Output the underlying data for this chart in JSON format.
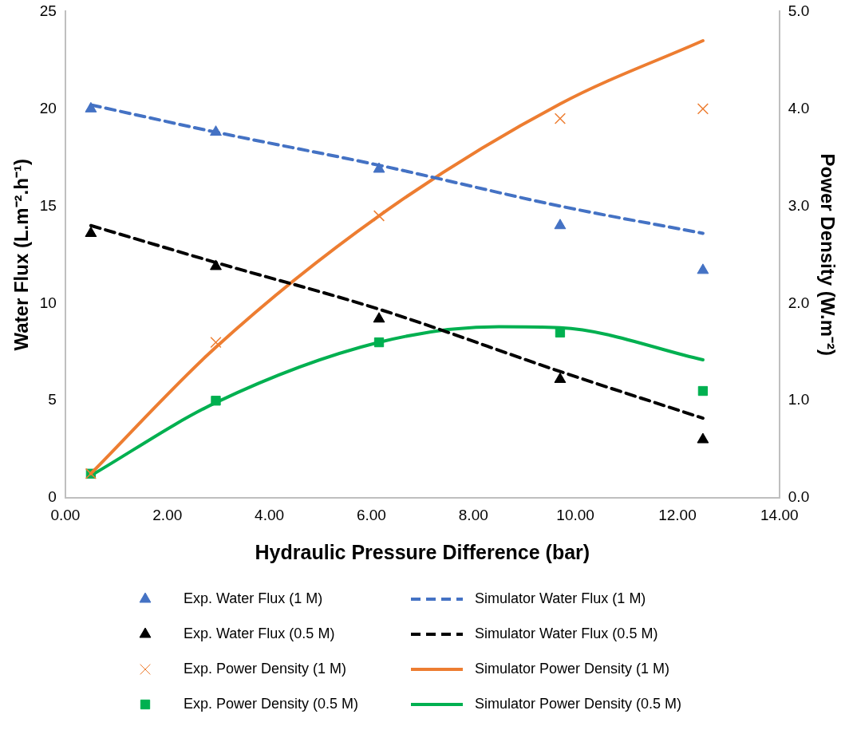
{
  "chart_data": {
    "type": "scatter",
    "xlabel": "Hydraulic Pressure Difference (bar)",
    "ylabel": "Water Flux (L.m⁻².h⁻¹)",
    "y2label": "Power Density (W.m⁻²)",
    "xlim": [
      0,
      14
    ],
    "xticks": [
      {
        "value": 0,
        "label": "0.00"
      },
      {
        "value": 2,
        "label": "2.00"
      },
      {
        "value": 4,
        "label": "4.00"
      },
      {
        "value": 6,
        "label": "6.00"
      },
      {
        "value": 8,
        "label": "8.00"
      },
      {
        "value": 10,
        "label": "10.00"
      },
      {
        "value": 12,
        "label": "12.00"
      },
      {
        "value": 14,
        "label": "14.00"
      }
    ],
    "ylim": [
      0,
      25
    ],
    "yticks": [
      0,
      5,
      10,
      15,
      20,
      25
    ],
    "y2lim": [
      0,
      5
    ],
    "y2ticks": [
      {
        "value": 0,
        "label": "0.0"
      },
      {
        "value": 1,
        "label": "1.0"
      },
      {
        "value": 2,
        "label": "2.0"
      },
      {
        "value": 3,
        "label": "3.0"
      },
      {
        "value": 4,
        "label": "4.0"
      },
      {
        "value": 5,
        "label": "5.0"
      }
    ],
    "grid": false,
    "legend": "bottom",
    "series": [
      {
        "name": "Exp. Water Flux (1 M)",
        "type": "scatter",
        "marker": "triangle",
        "color": "#4472c4",
        "x": [
          0.5,
          2.95,
          6.15,
          9.7,
          12.5
        ],
        "values": [
          20.0,
          18.8,
          16.9,
          14.0,
          11.7
        ]
      },
      {
        "name": "Simulator Water Flux (1 M)",
        "type": "line",
        "marker": "none",
        "line_style": "dashed",
        "color": "#4472c4",
        "x": [
          0.5,
          2.95,
          6.15,
          9.7,
          12.5
        ],
        "values": [
          20.2,
          18.8,
          17.1,
          15.0,
          13.6
        ]
      },
      {
        "name": "Exp. Water Flux (0.5 M)",
        "type": "scatter",
        "marker": "triangle",
        "color": "#000000",
        "x": [
          0.5,
          2.95,
          6.15,
          9.7,
          12.5
        ],
        "values": [
          13.6,
          11.9,
          9.2,
          6.1,
          3.0
        ]
      },
      {
        "name": "Simulator Water Flux (0.5 M)",
        "type": "line",
        "marker": "none",
        "line_style": "dashed",
        "color": "#000000",
        "x": [
          0.5,
          2.95,
          6.15,
          9.7,
          12.5
        ],
        "values": [
          14.0,
          12.1,
          9.7,
          6.5,
          4.1
        ]
      },
      {
        "name": "Exp. Power Density (1 M)",
        "type": "scatter",
        "marker": "cross",
        "color": "#ed7d31",
        "axis": "y2",
        "x": [
          0.5,
          2.95,
          6.15,
          9.7,
          12.5
        ],
        "values": [
          0.25,
          1.6,
          2.9,
          3.9,
          4.0
        ]
      },
      {
        "name": "Simulator Power Density (1 M)",
        "type": "line",
        "marker": "none",
        "line_style": "solid",
        "color": "#ed7d31",
        "axis": "y2",
        "x": [
          0.5,
          2.95,
          6.15,
          9.7,
          12.5
        ],
        "values": [
          0.25,
          1.55,
          2.9,
          4.05,
          4.7
        ]
      },
      {
        "name": "Exp. Power Density (0.5 M)",
        "type": "scatter",
        "marker": "square",
        "color": "#00b050",
        "axis": "y2",
        "x": [
          0.5,
          2.95,
          6.15,
          9.7,
          12.5
        ],
        "values": [
          0.25,
          1.0,
          1.6,
          1.7,
          1.1
        ]
      },
      {
        "name": "Simulator Power Density (0.5 M)",
        "type": "line",
        "marker": "none",
        "line_style": "solid",
        "color": "#00b050",
        "axis": "y2",
        "x": [
          0.5,
          2.95,
          6.15,
          8.5,
          9.7,
          12.5
        ],
        "values": [
          0.23,
          0.98,
          1.6,
          1.76,
          1.75,
          1.42
        ]
      }
    ]
  }
}
